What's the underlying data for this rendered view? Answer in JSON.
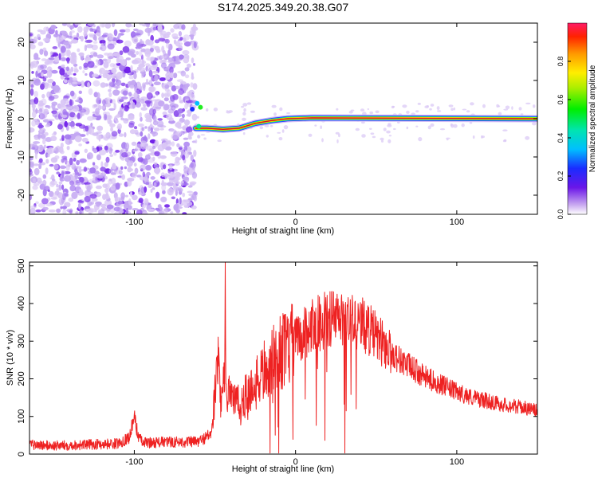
{
  "title": "S174.2025.349.20.38.G07",
  "colors": {
    "snr_line": "#ee2222",
    "carrier_core": "#cc1030",
    "noise_light": "#d9c6f5",
    "noise_dark": "#6a16e8",
    "axis": "#000000"
  },
  "chart_data": [
    {
      "type": "heatmap",
      "name": "spectrogram",
      "xlabel": "Height of straight line (km)",
      "ylabel": "Frequency (Hz)",
      "xlim": [
        -165,
        150
      ],
      "ylim": [
        -25,
        25
      ],
      "xticks": [
        -100,
        0,
        100
      ],
      "xtick_labels": [
        "-100",
        "0",
        "100"
      ],
      "yticks": [
        -20,
        -10,
        0,
        10,
        20
      ],
      "ytick_labels": [
        "-20",
        "-10",
        "0",
        "10",
        "20"
      ],
      "noise_region_x": [
        -165,
        -62
      ],
      "carrier": {
        "x_start": -62,
        "x_end": 150,
        "freq_path": [
          [
            -62,
            -2.5
          ],
          [
            -55,
            -2.5
          ],
          [
            -45,
            -2.8
          ],
          [
            -35,
            -2.5
          ],
          [
            -25,
            -1.2
          ],
          [
            -15,
            -0.5
          ],
          [
            -5,
            0.0
          ],
          [
            10,
            0.2
          ],
          [
            150,
            0.0
          ]
        ]
      },
      "colorbar": {
        "label": "Normalized spectral amplitude",
        "range": [
          0,
          1
        ],
        "ticks": [
          0.0,
          0.2,
          0.4,
          0.6,
          0.8
        ],
        "tick_labels": [
          "0.0",
          "0.2",
          "0.4",
          "0.6",
          "0.8"
        ]
      }
    },
    {
      "type": "line",
      "name": "snr",
      "xlabel": "Height of straight line (km)",
      "ylabel": "SNR (10 * v/v)",
      "xlim": [
        -165,
        150
      ],
      "ylim": [
        0,
        510
      ],
      "xticks": [
        -100,
        0,
        100
      ],
      "xtick_labels": [
        "-100",
        "0",
        "100"
      ],
      "yticks": [
        0,
        100,
        200,
        300,
        400,
        500
      ],
      "ytick_labels": [
        "0",
        "100",
        "200",
        "300",
        "400",
        "500"
      ],
      "series": [
        {
          "name": "SNR",
          "x": [
            -165,
            -150,
            -130,
            -110,
            -103,
            -100,
            -98,
            -95,
            -80,
            -60,
            -52,
            -50,
            -48,
            -46,
            -44,
            -43.5,
            -43,
            -41,
            -38,
            -35,
            -30,
            -25,
            -20,
            -15,
            -10,
            -5,
            0,
            5,
            10,
            15,
            20,
            25,
            30,
            35,
            40,
            45,
            50,
            55,
            60,
            70,
            80,
            90,
            100,
            110,
            120,
            130,
            140,
            150
          ],
          "y": [
            25,
            22,
            25,
            28,
            45,
            100,
            55,
            30,
            32,
            33,
            55,
            160,
            230,
            120,
            210,
            510,
            150,
            180,
            150,
            130,
            160,
            180,
            220,
            240,
            270,
            280,
            300,
            320,
            340,
            350,
            360,
            360,
            355,
            350,
            345,
            335,
            310,
            290,
            265,
            235,
            205,
            185,
            165,
            150,
            140,
            130,
            125,
            115
          ]
        }
      ]
    }
  ]
}
